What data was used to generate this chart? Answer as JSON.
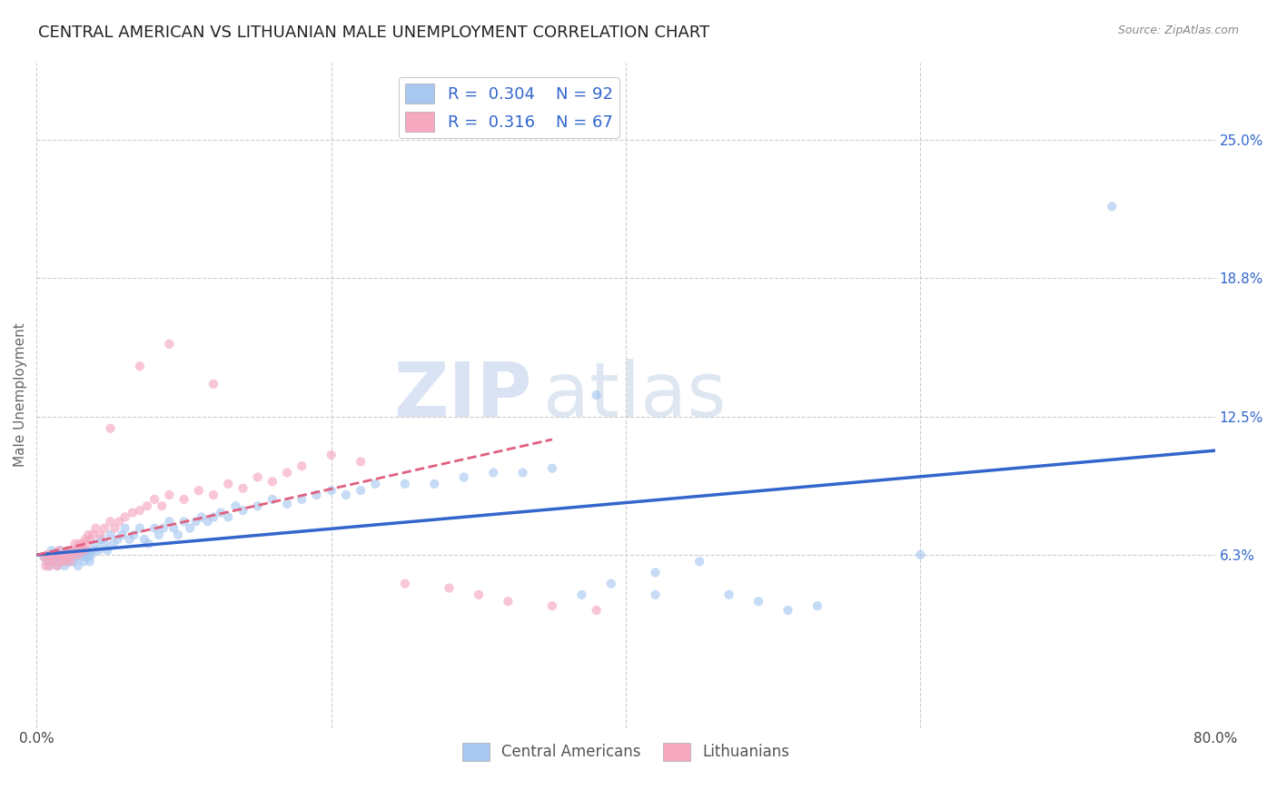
{
  "title": "CENTRAL AMERICAN VS LITHUANIAN MALE UNEMPLOYMENT CORRELATION CHART",
  "source": "Source: ZipAtlas.com",
  "ylabel": "Male Unemployment",
  "xlim": [
    0.0,
    0.8
  ],
  "ylim": [
    -0.015,
    0.285
  ],
  "ytick_values": [
    0.063,
    0.125,
    0.188,
    0.25
  ],
  "ytick_labels": [
    "6.3%",
    "12.5%",
    "18.8%",
    "25.0%"
  ],
  "blue_color": "#a8c8f0",
  "pink_color": "#f5a8c0",
  "blue_line_color": "#3366cc",
  "pink_line_color": "#e06080",
  "watermark_zip": "ZIP",
  "watermark_atlas": "atlas",
  "background_color": "#ffffff",
  "grid_color": "#cccccc",
  "title_fontsize": 13,
  "axis_label_fontsize": 11,
  "tick_fontsize": 11,
  "scatter_size": 55,
  "scatter_alpha": 0.65,
  "blue_trend_x": [
    0.0,
    0.8
  ],
  "blue_trend_y": [
    0.063,
    0.11
  ],
  "pink_trend_x": [
    0.0,
    0.35
  ],
  "pink_trend_y": [
    0.063,
    0.115
  ],
  "blue_scatter_x": [
    0.005,
    0.007,
    0.008,
    0.009,
    0.01,
    0.01,
    0.011,
    0.012,
    0.013,
    0.014,
    0.015,
    0.016,
    0.017,
    0.018,
    0.019,
    0.02,
    0.021,
    0.022,
    0.023,
    0.024,
    0.025,
    0.026,
    0.027,
    0.028,
    0.029,
    0.03,
    0.031,
    0.032,
    0.033,
    0.034,
    0.035,
    0.036,
    0.037,
    0.038,
    0.04,
    0.042,
    0.044,
    0.046,
    0.048,
    0.05,
    0.052,
    0.055,
    0.058,
    0.06,
    0.063,
    0.066,
    0.07,
    0.073,
    0.076,
    0.08,
    0.083,
    0.086,
    0.09,
    0.093,
    0.096,
    0.1,
    0.104,
    0.108,
    0.112,
    0.116,
    0.12,
    0.125,
    0.13,
    0.135,
    0.14,
    0.15,
    0.16,
    0.17,
    0.18,
    0.19,
    0.2,
    0.21,
    0.22,
    0.23,
    0.25,
    0.27,
    0.29,
    0.31,
    0.33,
    0.35,
    0.37,
    0.39,
    0.42,
    0.45,
    0.47,
    0.49,
    0.51,
    0.53,
    0.38,
    0.42,
    0.6,
    0.73
  ],
  "blue_scatter_y": [
    0.062,
    0.06,
    0.058,
    0.063,
    0.065,
    0.06,
    0.062,
    0.064,
    0.06,
    0.058,
    0.062,
    0.065,
    0.06,
    0.063,
    0.058,
    0.062,
    0.064,
    0.06,
    0.063,
    0.065,
    0.06,
    0.062,
    0.063,
    0.058,
    0.065,
    0.062,
    0.064,
    0.06,
    0.063,
    0.065,
    0.062,
    0.06,
    0.063,
    0.065,
    0.068,
    0.065,
    0.07,
    0.068,
    0.065,
    0.072,
    0.068,
    0.07,
    0.072,
    0.075,
    0.07,
    0.072,
    0.075,
    0.07,
    0.068,
    0.075,
    0.072,
    0.075,
    0.078,
    0.075,
    0.072,
    0.078,
    0.075,
    0.078,
    0.08,
    0.078,
    0.08,
    0.082,
    0.08,
    0.085,
    0.083,
    0.085,
    0.088,
    0.086,
    0.088,
    0.09,
    0.092,
    0.09,
    0.092,
    0.095,
    0.095,
    0.095,
    0.098,
    0.1,
    0.1,
    0.102,
    0.045,
    0.05,
    0.055,
    0.06,
    0.045,
    0.042,
    0.038,
    0.04,
    0.135,
    0.045,
    0.063,
    0.22
  ],
  "pink_scatter_x": [
    0.005,
    0.006,
    0.007,
    0.008,
    0.009,
    0.01,
    0.011,
    0.012,
    0.013,
    0.014,
    0.015,
    0.016,
    0.017,
    0.018,
    0.019,
    0.02,
    0.021,
    0.022,
    0.023,
    0.024,
    0.025,
    0.026,
    0.027,
    0.028,
    0.029,
    0.03,
    0.031,
    0.032,
    0.033,
    0.034,
    0.035,
    0.036,
    0.038,
    0.04,
    0.043,
    0.046,
    0.05,
    0.053,
    0.056,
    0.06,
    0.065,
    0.07,
    0.075,
    0.08,
    0.085,
    0.09,
    0.1,
    0.11,
    0.12,
    0.13,
    0.14,
    0.15,
    0.16,
    0.17,
    0.18,
    0.2,
    0.22,
    0.25,
    0.28,
    0.3,
    0.32,
    0.35,
    0.38,
    0.05,
    0.07,
    0.09,
    0.12
  ],
  "pink_scatter_y": [
    0.062,
    0.058,
    0.063,
    0.06,
    0.058,
    0.063,
    0.062,
    0.06,
    0.063,
    0.058,
    0.065,
    0.063,
    0.06,
    0.062,
    0.06,
    0.063,
    0.065,
    0.062,
    0.06,
    0.063,
    0.065,
    0.068,
    0.065,
    0.063,
    0.068,
    0.065,
    0.068,
    0.065,
    0.07,
    0.068,
    0.072,
    0.07,
    0.072,
    0.075,
    0.072,
    0.075,
    0.078,
    0.075,
    0.078,
    0.08,
    0.082,
    0.083,
    0.085,
    0.088,
    0.085,
    0.09,
    0.088,
    0.092,
    0.09,
    0.095,
    0.093,
    0.098,
    0.096,
    0.1,
    0.103,
    0.108,
    0.105,
    0.05,
    0.048,
    0.045,
    0.042,
    0.04,
    0.038,
    0.12,
    0.148,
    0.158,
    0.14
  ]
}
